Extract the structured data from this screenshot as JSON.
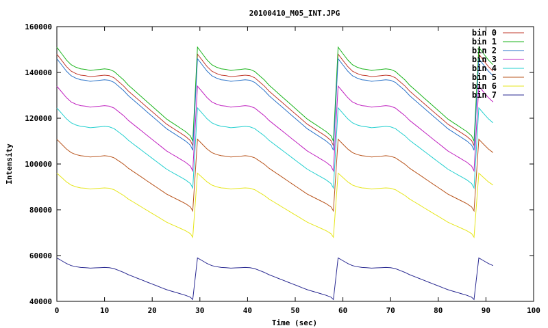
{
  "chart_data": {
    "type": "line",
    "title": "20100410_M05_INT.JPG",
    "xlabel": "Time (sec)",
    "ylabel": "Intensity",
    "xlim": [
      0,
      100
    ],
    "ylim": [
      40000,
      160000
    ],
    "xticks": [
      0,
      10,
      20,
      30,
      40,
      50,
      60,
      70,
      80,
      90,
      100
    ],
    "yticks": [
      40000,
      60000,
      80000,
      100000,
      120000,
      140000,
      160000
    ],
    "ytick_labels": [
      "40000",
      "60000",
      "80000",
      "100000",
      "120000",
      "140000",
      "160000"
    ],
    "xtick_labels": [
      "0",
      "10",
      "20",
      "30",
      "40",
      "50",
      "60",
      "70",
      "80",
      "90",
      "100"
    ],
    "grid": false,
    "legend_position": "top-right",
    "sweep": {
      "period_sec": 30,
      "cycle_offsets_sec": [
        0,
        29.5,
        59,
        88.5
      ],
      "cycle_end_sec": [
        28.5,
        58.5,
        88.5,
        92
      ],
      "profile_t": [
        0,
        1,
        2,
        3,
        4,
        5,
        6,
        7,
        8,
        9,
        10,
        11,
        12,
        13,
        14,
        15,
        16,
        17,
        18,
        19,
        20,
        21,
        22,
        23,
        24,
        25,
        26,
        27,
        28,
        28.5
      ],
      "profile_frac": [
        1.0,
        0.932,
        0.865,
        0.814,
        0.787,
        0.77,
        0.764,
        0.753,
        0.759,
        0.764,
        0.77,
        0.764,
        0.742,
        0.697,
        0.652,
        0.596,
        0.551,
        0.506,
        0.461,
        0.416,
        0.371,
        0.326,
        0.281,
        0.236,
        0.202,
        0.169,
        0.135,
        0.101,
        0.056,
        0.0
      ]
    },
    "series": [
      {
        "name": "bin 0",
        "color": "#c0392b",
        "start": 148000,
        "end": 108000
      },
      {
        "name": "bin 1",
        "color": "#19b319",
        "start": 151000,
        "end": 110000
      },
      {
        "name": "bin 2",
        "color": "#2a72c8",
        "start": 146000,
        "end": 106000
      },
      {
        "name": "bin 3",
        "color": "#c021c0",
        "start": 134000,
        "end": 97000
      },
      {
        "name": "bin 4",
        "color": "#21cfcf",
        "start": 124500,
        "end": 89500
      },
      {
        "name": "bin 5",
        "color": "#b8541c",
        "start": 110800,
        "end": 79500
      },
      {
        "name": "bin 6",
        "color": "#e6e619",
        "start": 96000,
        "end": 68000
      },
      {
        "name": "bin 7",
        "color": "#272790",
        "start": 59000,
        "end": 40800
      }
    ]
  }
}
